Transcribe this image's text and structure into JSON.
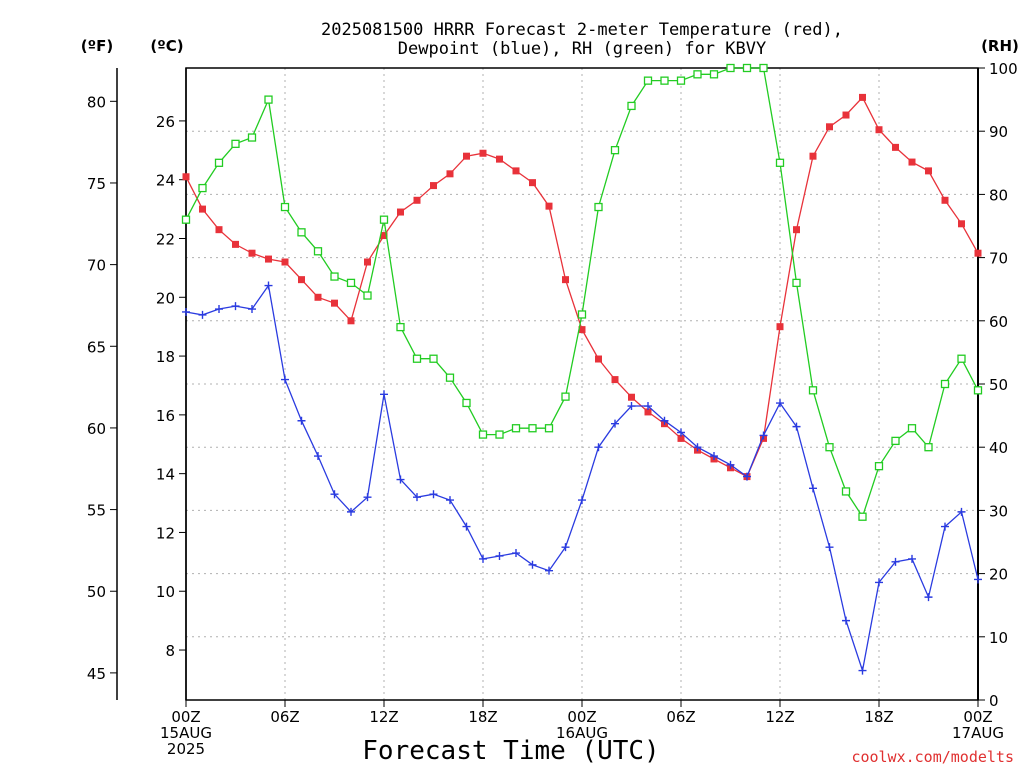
{
  "chart_data": {
    "type": "line",
    "title": [
      "2025081500 HRRR Forecast 2-meter Temperature (red),",
      "Dewpoint (blue), RH (green) for KBVY"
    ],
    "xlabel": "Forecast Time (UTC)",
    "credit": "coolwx.com/modelts",
    "units": {
      "fahrenheit": "(ºF)",
      "celsius": "(ºC)",
      "rh": "(RH)"
    },
    "x_range_hours": [
      0,
      48
    ],
    "x_ticks": [
      {
        "hour": 0,
        "lines": [
          "00Z",
          "15AUG",
          "2025"
        ]
      },
      {
        "hour": 6,
        "lines": [
          "06Z"
        ]
      },
      {
        "hour": 12,
        "lines": [
          "12Z"
        ]
      },
      {
        "hour": 18,
        "lines": [
          "18Z"
        ]
      },
      {
        "hour": 24,
        "lines": [
          "00Z",
          "16AUG"
        ]
      },
      {
        "hour": 30,
        "lines": [
          "06Z"
        ]
      },
      {
        "hour": 36,
        "lines": [
          "12Z"
        ]
      },
      {
        "hour": 42,
        "lines": [
          "18Z"
        ]
      },
      {
        "hour": 48,
        "lines": [
          "00Z",
          "17AUG"
        ]
      }
    ],
    "celsius_axis": {
      "range": [
        6.3,
        27.8
      ],
      "ticks": [
        8,
        10,
        12,
        14,
        16,
        18,
        20,
        22,
        24,
        26
      ]
    },
    "fahrenheit_axis": {
      "ticks": [
        45,
        50,
        55,
        60,
        65,
        70,
        75,
        80
      ]
    },
    "rh_axis": {
      "range": [
        0,
        100
      ],
      "ticks": [
        0,
        10,
        20,
        30,
        40,
        50,
        60,
        70,
        80,
        90,
        100
      ]
    },
    "grid": true,
    "series": [
      {
        "name": "Temperature",
        "color": "#e8323a",
        "marker": "filled-square",
        "axis": "celsius",
        "values": [
          24.1,
          23.0,
          22.3,
          21.8,
          21.5,
          21.3,
          21.2,
          20.6,
          20.0,
          19.8,
          19.2,
          21.2,
          22.1,
          22.9,
          23.3,
          23.8,
          24.2,
          24.8,
          24.9,
          24.7,
          24.3,
          23.9,
          23.1,
          20.6,
          18.9,
          17.9,
          17.2,
          16.6,
          16.1,
          15.7,
          15.2,
          14.8,
          14.5,
          14.2,
          13.9,
          15.2,
          19.0,
          22.3,
          24.8,
          25.8,
          26.2,
          26.8,
          25.7,
          25.1,
          24.6,
          24.3,
          23.3,
          22.5,
          21.5
        ]
      },
      {
        "name": "Dewpoint",
        "color": "#2a3be0",
        "marker": "plus",
        "axis": "celsius",
        "values": [
          19.5,
          19.4,
          19.6,
          19.7,
          19.6,
          20.4,
          17.2,
          15.8,
          14.6,
          13.3,
          12.7,
          13.2,
          16.7,
          13.8,
          13.2,
          13.3,
          13.1,
          12.2,
          11.1,
          11.2,
          11.3,
          10.9,
          10.7,
          11.5,
          13.1,
          14.9,
          15.7,
          16.3,
          16.3,
          15.8,
          15.4,
          14.9,
          14.6,
          14.3,
          13.9,
          15.3,
          16.4,
          15.6,
          13.5,
          11.5,
          9.0,
          7.3,
          10.3,
          11.0,
          11.1,
          9.8,
          12.2,
          12.7,
          10.4
        ]
      },
      {
        "name": "RH",
        "color": "#22cc22",
        "marker": "open-square",
        "axis": "rh",
        "values": [
          76,
          81,
          85,
          88,
          89,
          95,
          78,
          74,
          71,
          67,
          66,
          64,
          76,
          59,
          54,
          54,
          51,
          47,
          42,
          42,
          43,
          43,
          43,
          48,
          61,
          78,
          87,
          94,
          98,
          98,
          98,
          99,
          99,
          100,
          100,
          100,
          85,
          66,
          49,
          40,
          33,
          29,
          37,
          41,
          43,
          40,
          50,
          54,
          49
        ]
      }
    ]
  }
}
